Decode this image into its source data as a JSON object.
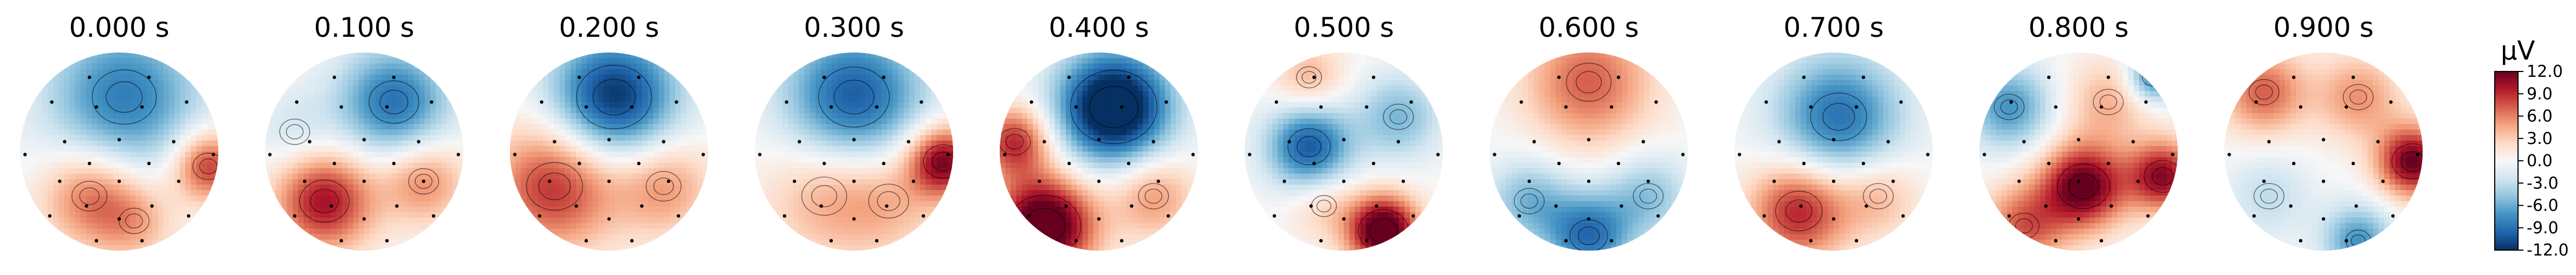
{
  "chart_data": {
    "type": "heatmap",
    "subtype": "eeg-topomap-series",
    "panels": [
      {
        "time_label": "0.000 s",
        "blobs": [
          {
            "u": 0.05,
            "v": -0.55,
            "a": -0.7,
            "s": 0.55
          },
          {
            "u": -0.3,
            "v": 0.45,
            "a": 0.55,
            "s": 0.35
          },
          {
            "u": 0.9,
            "v": 0.15,
            "a": 0.75,
            "s": 0.25
          },
          {
            "u": 0.15,
            "v": 0.7,
            "a": 0.35,
            "s": 0.3
          }
        ]
      },
      {
        "time_label": "0.100 s",
        "blobs": [
          {
            "u": 0.3,
            "v": -0.5,
            "a": -0.75,
            "s": 0.4
          },
          {
            "u": -0.4,
            "v": 0.5,
            "a": 0.85,
            "s": 0.35
          },
          {
            "u": 0.6,
            "v": 0.3,
            "a": 0.5,
            "s": 0.3
          },
          {
            "u": -0.7,
            "v": -0.2,
            "a": -0.2,
            "s": 0.3
          }
        ]
      },
      {
        "time_label": "0.200 s",
        "blobs": [
          {
            "u": 0.05,
            "v": -0.55,
            "a": -1.0,
            "s": 0.45
          },
          {
            "u": -0.55,
            "v": 0.35,
            "a": 0.75,
            "s": 0.45
          },
          {
            "u": 0.55,
            "v": 0.35,
            "a": 0.45,
            "s": 0.35
          }
        ]
      },
      {
        "time_label": "0.300 s",
        "blobs": [
          {
            "u": 0.0,
            "v": -0.55,
            "a": -0.85,
            "s": 0.5
          },
          {
            "u": 0.9,
            "v": 0.1,
            "a": 0.95,
            "s": 0.25
          },
          {
            "u": -0.3,
            "v": 0.45,
            "a": 0.35,
            "s": 0.45
          },
          {
            "u": 0.35,
            "v": 0.5,
            "a": 0.3,
            "s": 0.4
          }
        ]
      },
      {
        "time_label": "0.400 s",
        "blobs": [
          {
            "u": 0.15,
            "v": -0.45,
            "a": -1.3,
            "s": 0.4
          },
          {
            "u": -0.55,
            "v": 0.75,
            "a": 1.25,
            "s": 0.35
          },
          {
            "u": -0.85,
            "v": -0.1,
            "a": 0.75,
            "s": 0.25
          },
          {
            "u": 0.55,
            "v": 0.45,
            "a": 0.45,
            "s": 0.3
          }
        ]
      },
      {
        "time_label": "0.500 s",
        "blobs": [
          {
            "u": -0.35,
            "v": -0.05,
            "a": -0.85,
            "s": 0.3
          },
          {
            "u": 0.4,
            "v": 0.8,
            "a": 1.2,
            "s": 0.25
          },
          {
            "u": 0.55,
            "v": -0.35,
            "a": -0.45,
            "s": 0.3
          },
          {
            "u": -0.35,
            "v": -0.75,
            "a": 0.35,
            "s": 0.25
          },
          {
            "u": -0.2,
            "v": 0.55,
            "a": 0.25,
            "s": 0.25
          }
        ]
      },
      {
        "time_label": "0.600 s",
        "blobs": [
          {
            "u": 0.0,
            "v": -0.7,
            "a": 0.6,
            "s": 0.45
          },
          {
            "u": 0.0,
            "v": 0.85,
            "a": -0.75,
            "s": 0.3
          },
          {
            "u": -0.6,
            "v": 0.5,
            "a": -0.45,
            "s": 0.3
          },
          {
            "u": 0.6,
            "v": 0.45,
            "a": -0.4,
            "s": 0.3
          }
        ]
      },
      {
        "time_label": "0.700 s",
        "blobs": [
          {
            "u": 0.05,
            "v": -0.35,
            "a": -0.75,
            "s": 0.45
          },
          {
            "u": -0.35,
            "v": 0.6,
            "a": 0.8,
            "s": 0.35
          },
          {
            "u": 0.45,
            "v": 0.45,
            "a": 0.35,
            "s": 0.3
          }
        ]
      },
      {
        "time_label": "0.800 s",
        "blobs": [
          {
            "u": 0.05,
            "v": 0.35,
            "a": 1.05,
            "s": 0.3
          },
          {
            "u": 0.85,
            "v": 0.25,
            "a": 0.9,
            "s": 0.25
          },
          {
            "u": 0.75,
            "v": -0.75,
            "a": -0.7,
            "s": 0.18
          },
          {
            "u": -0.7,
            "v": -0.45,
            "a": -0.6,
            "s": 0.3
          },
          {
            "u": -0.55,
            "v": 0.75,
            "a": 0.6,
            "s": 0.3
          },
          {
            "u": 0.3,
            "v": -0.5,
            "a": 0.35,
            "s": 0.3
          }
        ]
      },
      {
        "time_label": "0.900 s",
        "blobs": [
          {
            "u": 0.9,
            "v": 0.1,
            "a": 1.0,
            "s": 0.25
          },
          {
            "u": -0.6,
            "v": -0.6,
            "a": 0.6,
            "s": 0.3
          },
          {
            "u": 0.35,
            "v": -0.55,
            "a": 0.45,
            "s": 0.3
          },
          {
            "u": 0.35,
            "v": 0.9,
            "a": -0.6,
            "s": 0.25
          },
          {
            "u": -0.55,
            "v": 0.45,
            "a": -0.25,
            "s": 0.3
          }
        ]
      }
    ],
    "sensors": [
      [
        -0.3,
        -0.75
      ],
      [
        0.3,
        -0.75
      ],
      [
        -0.68,
        -0.5
      ],
      [
        -0.23,
        -0.45
      ],
      [
        0.23,
        -0.45
      ],
      [
        0.68,
        -0.5
      ],
      [
        -0.55,
        -0.1
      ],
      [
        0.0,
        -0.12
      ],
      [
        0.55,
        -0.1
      ],
      [
        -0.95,
        0.03
      ],
      [
        -0.3,
        0.12
      ],
      [
        0.3,
        0.12
      ],
      [
        0.95,
        0.03
      ],
      [
        -0.6,
        0.3
      ],
      [
        0.0,
        0.3
      ],
      [
        0.6,
        0.3
      ],
      [
        -0.33,
        0.55
      ],
      [
        0.33,
        0.55
      ],
      [
        -0.7,
        0.65
      ],
      [
        0.0,
        0.68
      ],
      [
        0.7,
        0.65
      ],
      [
        -0.23,
        0.9
      ],
      [
        0.23,
        0.9
      ]
    ],
    "colormap": "RdBu_r",
    "colorbar": {
      "label": "µV",
      "ticks": [
        "12.0",
        "9.0",
        "6.0",
        "3.0",
        "0.0",
        "-3.0",
        "-6.0",
        "-9.0",
        "-12.0"
      ],
      "range": [
        -12.0,
        12.0
      ]
    },
    "colors": {
      "negative": "#053061",
      "neutral": "#f7f7f7",
      "positive": "#67001f",
      "contour": "#000000",
      "sensor": "#000000"
    },
    "grid": false
  }
}
